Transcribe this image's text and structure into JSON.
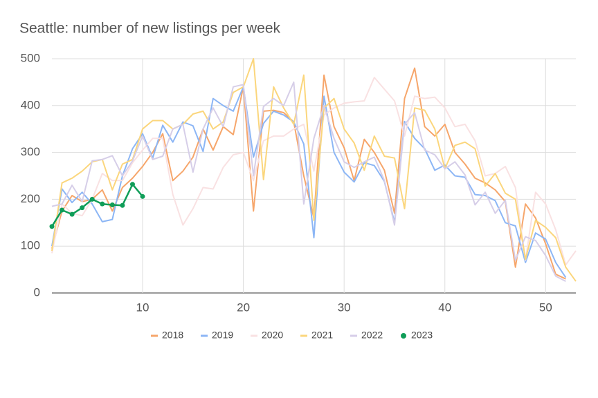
{
  "chart_data": {
    "type": "line",
    "title": "Seattle: number of new listings per week",
    "x": [
      1,
      2,
      3,
      4,
      5,
      6,
      7,
      8,
      9,
      10,
      11,
      12,
      13,
      14,
      15,
      16,
      17,
      18,
      19,
      20,
      21,
      22,
      23,
      24,
      25,
      26,
      27,
      28,
      29,
      30,
      31,
      32,
      33,
      34,
      35,
      36,
      37,
      38,
      39,
      40,
      41,
      42,
      43,
      44,
      45,
      46,
      47,
      48,
      49,
      50,
      51,
      52,
      53
    ],
    "xlim": [
      1,
      53
    ],
    "xticks": [
      10,
      20,
      30,
      40,
      50
    ],
    "ylim": [
      0,
      500
    ],
    "yticks": [
      0,
      100,
      200,
      300,
      400,
      500
    ],
    "grid": true,
    "legend": "bottom",
    "series": [
      {
        "name": "2018",
        "color": "#f6a66b",
        "values": [
          95,
          175,
          208,
          195,
          200,
          220,
          175,
          225,
          245,
          270,
          300,
          340,
          240,
          260,
          290,
          350,
          305,
          355,
          338,
          440,
          175,
          388,
          390,
          385,
          365,
          250,
          160,
          465,
          355,
          310,
          240,
          328,
          300,
          262,
          170,
          415,
          480,
          355,
          335,
          360,
          300,
          275,
          245,
          235,
          220,
          195,
          55,
          190,
          160,
          105,
          40,
          30,
          null
        ]
      },
      {
        "name": "2019",
        "color": "#8cb6f5",
        "values": [
          100,
          222,
          193,
          215,
          190,
          152,
          157,
          250,
          308,
          340,
          288,
          358,
          322,
          365,
          357,
          302,
          415,
          400,
          388,
          440,
          290,
          362,
          388,
          380,
          365,
          318,
          118,
          420,
          300,
          258,
          237,
          278,
          272,
          238,
          150,
          366,
          330,
          308,
          262,
          273,
          250,
          247,
          210,
          208,
          197,
          150,
          143,
          65,
          128,
          115,
          65,
          33,
          null
        ]
      },
      {
        "name": "2020",
        "color": "#f9e1e2",
        "values": [
          85,
          190,
          170,
          165,
          200,
          255,
          240,
          240,
          278,
          305,
          330,
          330,
          210,
          145,
          180,
          225,
          222,
          268,
          295,
          300,
          240,
          325,
          335,
          335,
          350,
          360,
          260,
          380,
          395,
          405,
          408,
          410,
          460,
          435,
          410,
          335,
          420,
          415,
          418,
          395,
          355,
          360,
          325,
          250,
          255,
          270,
          225,
          70,
          215,
          190,
          135,
          60,
          90
        ]
      },
      {
        "name": "2021",
        "color": "#fbd67c",
        "values": [
          90,
          235,
          245,
          260,
          280,
          285,
          220,
          275,
          285,
          350,
          368,
          368,
          350,
          360,
          382,
          388,
          350,
          365,
          428,
          440,
          500,
          242,
          440,
          395,
          360,
          465,
          155,
          395,
          415,
          350,
          320,
          262,
          335,
          292,
          288,
          180,
          395,
          390,
          350,
          265,
          315,
          322,
          308,
          228,
          255,
          213,
          200,
          72,
          155,
          140,
          118,
          55,
          25
        ]
      },
      {
        "name": "2022",
        "color": "#d6cee8",
        "values": [
          185,
          190,
          230,
          195,
          282,
          285,
          293,
          250,
          282,
          335,
          285,
          292,
          350,
          360,
          258,
          350,
          395,
          355,
          440,
          445,
          250,
          398,
          415,
          400,
          450,
          190,
          330,
          400,
          330,
          280,
          268,
          280,
          290,
          240,
          145,
          360,
          385,
          305,
          295,
          265,
          280,
          252,
          188,
          215,
          170,
          198,
          70,
          120,
          112,
          80,
          36,
          25,
          null
        ]
      },
      {
        "name": "2023",
        "color": "#0f9d58",
        "point_markers": true,
        "values": [
          142,
          177,
          168,
          182,
          200,
          190,
          188,
          187,
          232,
          206,
          null,
          null,
          null,
          null,
          null,
          null,
          null,
          null,
          null,
          null,
          null,
          null,
          null,
          null,
          null,
          null,
          null,
          null,
          null,
          null,
          null,
          null,
          null,
          null,
          null,
          null,
          null,
          null,
          null,
          null,
          null,
          null,
          null,
          null,
          null,
          null,
          null,
          null,
          null,
          null,
          null,
          null,
          null
        ]
      }
    ]
  }
}
